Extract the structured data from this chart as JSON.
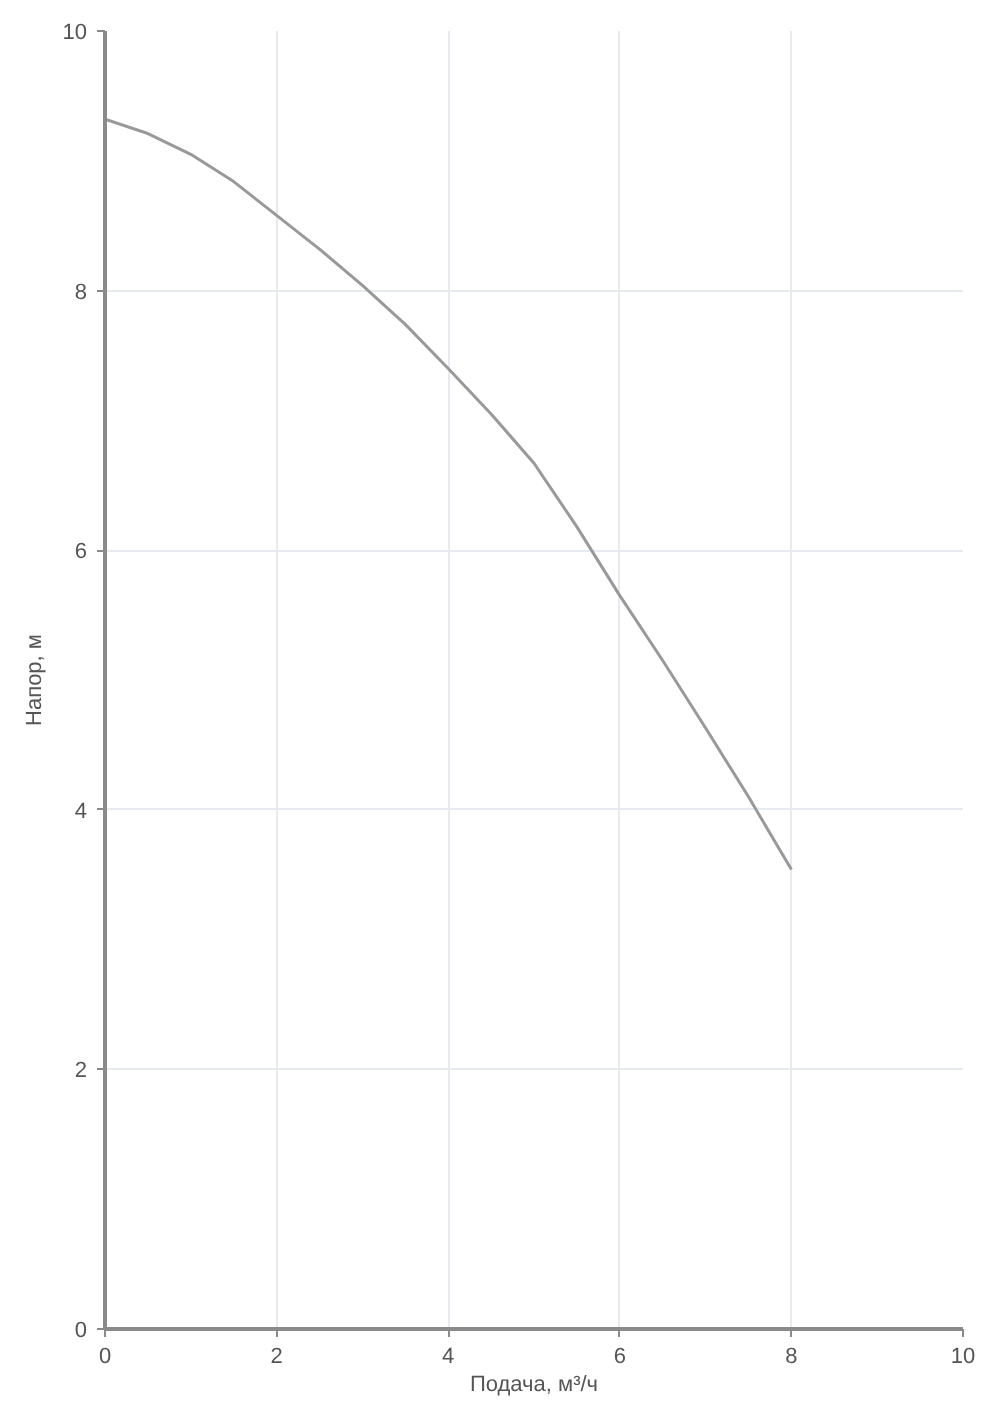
{
  "chart_data": {
    "type": "line",
    "xlabel": "Подача, м³/ч",
    "ylabel": "Напор, м",
    "x": [
      0,
      0.5,
      1,
      1.5,
      2,
      2.5,
      3,
      3.5,
      4,
      4.5,
      5,
      5.5,
      6,
      6.5,
      7,
      7.5,
      8
    ],
    "series": [
      {
        "color": "#999999",
        "values": [
          9.32,
          9.21,
          9.05,
          8.84,
          8.58,
          8.32,
          8.04,
          7.74,
          7.4,
          7.05,
          6.67,
          6.18,
          5.65,
          5.15,
          4.63,
          4.1,
          3.54
        ]
      }
    ],
    "xlim": [
      0,
      10
    ],
    "ylim": [
      0,
      10
    ],
    "xticks": [
      0,
      2,
      4,
      6,
      8,
      10
    ],
    "yticks": [
      0,
      2,
      4,
      6,
      8,
      10
    ],
    "grid": true,
    "marker": "none",
    "line_style": "solid"
  }
}
